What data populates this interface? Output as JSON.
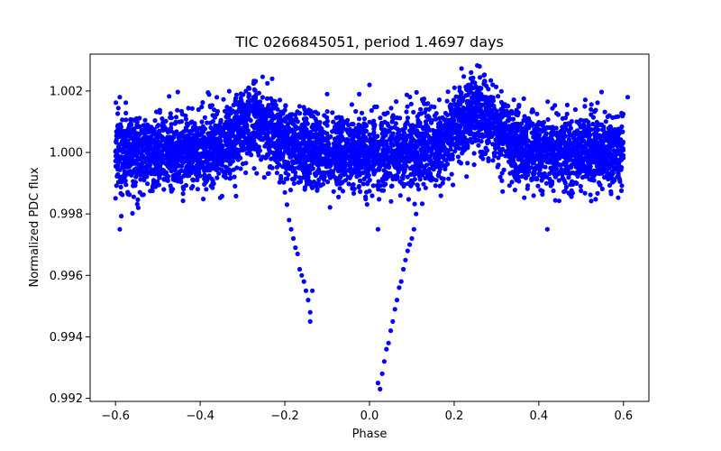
{
  "chart_data": {
    "type": "scatter",
    "title": "TIC 0266845051, period 1.4697 days",
    "xlabel": "Phase",
    "ylabel": "Normalized PDC flux",
    "xlim": [
      -0.66,
      0.66
    ],
    "ylim": [
      0.9919,
      1.0032
    ],
    "xticks": [
      -0.6,
      -0.4,
      -0.2,
      0.0,
      0.2,
      0.4,
      0.6
    ],
    "xtick_labels": [
      "−0.6",
      "−0.4",
      "−0.2",
      "0.0",
      "0.2",
      "0.4",
      "0.6"
    ],
    "yticks": [
      0.992,
      0.994,
      0.996,
      0.998,
      1.0,
      1.002
    ],
    "ytick_labels": [
      "0.992",
      "0.994",
      "0.996",
      "0.998",
      "1.000",
      "1.002"
    ],
    "grid": false,
    "legend": "none",
    "marker_color": "#0000ff",
    "series": [
      {
        "phase_range": [
          -0.6,
          0.6
        ],
        "baseline_flux": 1.0,
        "scatter_sigma": 0.0007,
        "secondary_eclipse": {
          "phase": -0.14,
          "min_flux": 0.9945,
          "ingress_start": -0.2
        },
        "primary_eclipse": {
          "phase": 0.03,
          "min_flux": 0.9923,
          "egress_end": 0.11
        },
        "brightening_peaks": [
          {
            "phase": -0.27,
            "max_flux": 1.0024
          },
          {
            "phase": 0.25,
            "max_flux": 1.0028
          }
        ],
        "points": [
          [
            -0.2,
            0.9987
          ],
          [
            -0.195,
            0.9983
          ],
          [
            -0.19,
            0.9978
          ],
          [
            -0.185,
            0.9975
          ],
          [
            -0.18,
            0.9972
          ],
          [
            -0.175,
            0.9969
          ],
          [
            -0.17,
            0.9967
          ],
          [
            -0.165,
            0.9962
          ],
          [
            -0.16,
            0.996
          ],
          [
            -0.155,
            0.9958
          ],
          [
            -0.15,
            0.9955
          ],
          [
            -0.145,
            0.9952
          ],
          [
            -0.14,
            0.9948
          ],
          [
            -0.14,
            0.9945
          ],
          [
            -0.135,
            0.9955
          ],
          [
            0.02,
            0.9925
          ],
          [
            0.025,
            0.9923
          ],
          [
            0.03,
            0.9928
          ],
          [
            0.035,
            0.9932
          ],
          [
            0.04,
            0.9936
          ],
          [
            0.045,
            0.9938
          ],
          [
            0.05,
            0.9942
          ],
          [
            0.055,
            0.9945
          ],
          [
            0.06,
            0.9949
          ],
          [
            0.065,
            0.9952
          ],
          [
            0.07,
            0.9956
          ],
          [
            0.075,
            0.9958
          ],
          [
            0.08,
            0.9962
          ],
          [
            0.085,
            0.9965
          ],
          [
            0.09,
            0.9968
          ],
          [
            0.095,
            0.997
          ],
          [
            0.1,
            0.9972
          ],
          [
            0.105,
            0.9975
          ],
          [
            0.11,
            0.998
          ],
          [
            -0.59,
            0.9975
          ],
          [
            0.0,
            1.0022
          ],
          [
            -0.1,
            1.0019
          ],
          [
            0.26,
            1.0028
          ],
          [
            0.24,
            1.0026
          ],
          [
            -0.23,
            1.0024
          ],
          [
            -0.27,
            1.0023
          ],
          [
            0.42,
            0.9975
          ],
          [
            0.61,
            1.0018
          ],
          [
            -0.59,
            1.0018
          ],
          [
            0.02,
            0.9975
          ]
        ]
      }
    ]
  }
}
